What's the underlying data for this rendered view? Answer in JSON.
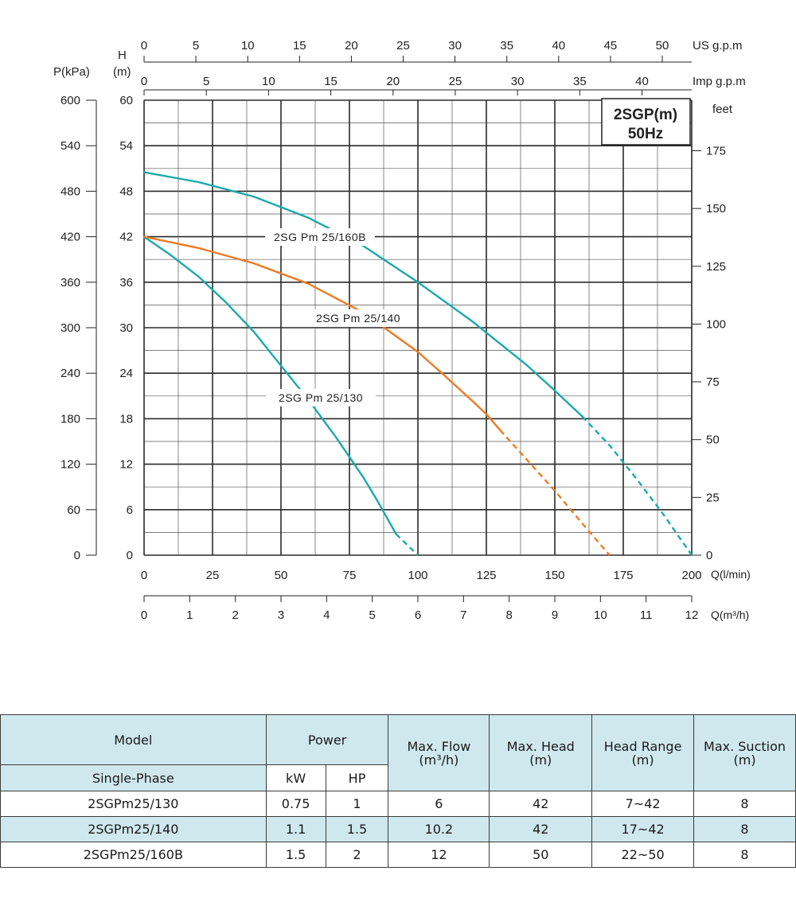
{
  "chart_data": {
    "type": "line",
    "badge": {
      "line1": "2SGP(m)",
      "line2": "50Hz"
    },
    "axes": {
      "p_label": "P(kPa)",
      "h_label_top": "H",
      "h_label_bottom": "(m)",
      "feet_label": "feet",
      "x_lmin_label": "Q(l/min)",
      "x_m3h_label": "Q(m³/h)",
      "us_label": "US  g.p.m",
      "imp_label": "Imp  g.p.m",
      "h_ticks": [
        "0",
        "6",
        "12",
        "18",
        "24",
        "30",
        "36",
        "42",
        "48",
        "54",
        "60"
      ],
      "p_ticks": [
        "0",
        "60",
        "120",
        "180",
        "240",
        "300",
        "360",
        "420",
        "480",
        "540",
        "600"
      ],
      "feet_ticks": [
        "0",
        "25",
        "50",
        "75",
        "100",
        "125",
        "150",
        "175"
      ],
      "x_lmin_ticks": [
        "0",
        "25",
        "50",
        "75",
        "100",
        "125",
        "150",
        "175",
        "200"
      ],
      "x_m3h_ticks": [
        "0",
        "1",
        "2",
        "3",
        "4",
        "5",
        "6",
        "7",
        "8",
        "9",
        "10",
        "11",
        "12"
      ],
      "us_ticks": [
        "0",
        "5",
        "10",
        "15",
        "20",
        "25",
        "30",
        "35",
        "40",
        "45",
        "50"
      ],
      "imp_ticks": [
        "0",
        "5",
        "10",
        "15",
        "20",
        "25",
        "30",
        "35",
        "40"
      ],
      "xlim_lmin": [
        0,
        200
      ],
      "ylim_m": [
        0,
        60
      ],
      "grid": true
    },
    "series": [
      {
        "name": "2SGPm 25/130",
        "color": "#1aa9ad",
        "x_lmin": [
          0,
          10,
          20,
          30,
          40,
          50,
          60,
          70,
          80,
          85,
          90,
          92
        ],
        "h_m": [
          42,
          39.5,
          36.7,
          33.3,
          29.5,
          25,
          20.5,
          15.6,
          10.3,
          7.3,
          4.1,
          2.8
        ],
        "dashed_x_lmin": [
          92,
          96,
          100
        ],
        "dashed_h_m": [
          2.8,
          1.4,
          0
        ]
      },
      {
        "name": "2SGPm 25/140",
        "color": "#f07a22",
        "x_lmin": [
          0,
          20,
          40,
          60,
          80,
          100,
          110,
          120,
          125,
          130
        ],
        "h_m": [
          42,
          40.5,
          38.5,
          35.8,
          32,
          26.8,
          23.6,
          20.3,
          18.6,
          16.5
        ],
        "dashed_x_lmin": [
          130,
          140,
          150,
          160,
          170
        ],
        "dashed_h_m": [
          16.5,
          12.5,
          8.5,
          4.2,
          0
        ]
      },
      {
        "name": "2SGPm 25/160B",
        "color": "#1aa9ad",
        "x_lmin": [
          0,
          20,
          40,
          60,
          80,
          100,
          120,
          140,
          150,
          160
        ],
        "h_m": [
          50.5,
          49.2,
          47.3,
          44.5,
          40.8,
          36,
          30.8,
          25,
          21.7,
          18.3
        ],
        "dashed_x_lmin": [
          160,
          170,
          180,
          190,
          200
        ],
        "dashed_h_m": [
          18.3,
          14.5,
          10,
          5.2,
          0
        ]
      }
    ],
    "curve_labels": [
      {
        "text": "2SG Pm  25/160B",
        "series": 2
      },
      {
        "text": "2SG Pm  25/140",
        "series": 1
      },
      {
        "text": "2SG Pm  25/130",
        "series": 0
      }
    ]
  },
  "table": {
    "headers": {
      "model": "Model",
      "single_phase": "Single-Phase",
      "power": "Power",
      "kw": "kW",
      "hp": "HP",
      "max_flow_1": "Max. Flow",
      "max_flow_2": "(m³/h)",
      "max_head_1": "Max. Head",
      "max_head_2": "(m)",
      "head_range_1": "Head Range",
      "head_range_2": "(m)",
      "max_suction_1": "Max. Suction",
      "max_suction_2": "(m)"
    },
    "rows": [
      [
        "2SGPm25/130",
        "0.75",
        "1",
        "6",
        "42",
        "7~42",
        "8"
      ],
      [
        "2SGPm25/140",
        "1.1",
        "1.5",
        "10.2",
        "42",
        "17~42",
        "8"
      ],
      [
        "2SGPm25/160B",
        "1.5",
        "2",
        "12",
        "50",
        "22~50",
        "8"
      ]
    ]
  },
  "colors": {
    "teal": "#1aa9ad",
    "orange": "#f07a22",
    "table_blue": "#cfe8ee"
  }
}
